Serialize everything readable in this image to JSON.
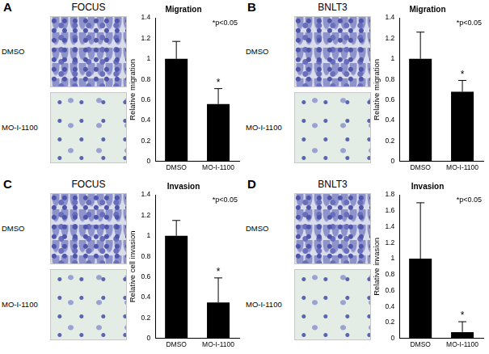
{
  "chart_data": [
    {
      "type": "bar",
      "panel": "A",
      "image_title": "FOCUS",
      "image_rows": [
        "DMSO",
        "MO-I-1100"
      ],
      "title": "Migration",
      "y_label": "Relative migration",
      "categories": [
        "DMSO",
        "MO-I-1100"
      ],
      "values": [
        1.0,
        0.56
      ],
      "errors": [
        0.17,
        0.15
      ],
      "significance": [
        null,
        "*"
      ],
      "annotations": [
        "*p<0.05"
      ],
      "color": "#000000",
      "ylim": [
        0,
        1.4
      ],
      "yticks": [
        0,
        0.2,
        0.4,
        0.6,
        0.8,
        1,
        1.2,
        1.4
      ],
      "grid": false
    },
    {
      "type": "bar",
      "panel": "B",
      "image_title": "BNLT3",
      "image_rows": [
        "DMSO",
        "MO-I-1100"
      ],
      "title": "Migration",
      "y_label": "Relative migration",
      "categories": [
        "DMSO",
        "MO-I-1100"
      ],
      "values": [
        1.0,
        0.68
      ],
      "errors": [
        0.26,
        0.11
      ],
      "significance": [
        null,
        "*"
      ],
      "annotations": [
        "*p<0.05"
      ],
      "color": "#000000",
      "ylim": [
        0,
        1.4
      ],
      "yticks": [
        0,
        0.2,
        0.4,
        0.6,
        0.8,
        1,
        1.2,
        1.4
      ],
      "grid": false
    },
    {
      "type": "bar",
      "panel": "C",
      "image_title": "FOCUS",
      "image_rows": [
        "DMSO",
        "MO-I-1100"
      ],
      "title": "Invasion",
      "y_label": "Relative cell invasion",
      "categories": [
        "DMSO",
        "MO-I-1100"
      ],
      "values": [
        1.0,
        0.35
      ],
      "errors": [
        0.15,
        0.24
      ],
      "significance": [
        null,
        "*"
      ],
      "annotations": [
        "*p<0.05"
      ],
      "color": "#000000",
      "ylim": [
        0,
        1.4
      ],
      "yticks": [
        0,
        0.2,
        0.4,
        0.6,
        0.8,
        1,
        1.2,
        1.4
      ],
      "grid": false
    },
    {
      "type": "bar",
      "panel": "D",
      "image_title": "BNLT3",
      "image_rows": [
        "DMSO",
        "MO-I-1100"
      ],
      "title": "Invasion",
      "y_label": "Relative invasion",
      "categories": [
        "DMSO",
        "MO-I-1100"
      ],
      "values": [
        1.0,
        0.08
      ],
      "errors": [
        0.7,
        0.13
      ],
      "significance": [
        null,
        "*"
      ],
      "annotations": [
        "*p<0.05"
      ],
      "color": "#000000",
      "ylim": [
        0,
        1.8
      ],
      "yticks": [
        0,
        0.2,
        0.4,
        0.6,
        0.8,
        1,
        1.2,
        1.4,
        1.6,
        1.8
      ],
      "grid": false
    }
  ]
}
